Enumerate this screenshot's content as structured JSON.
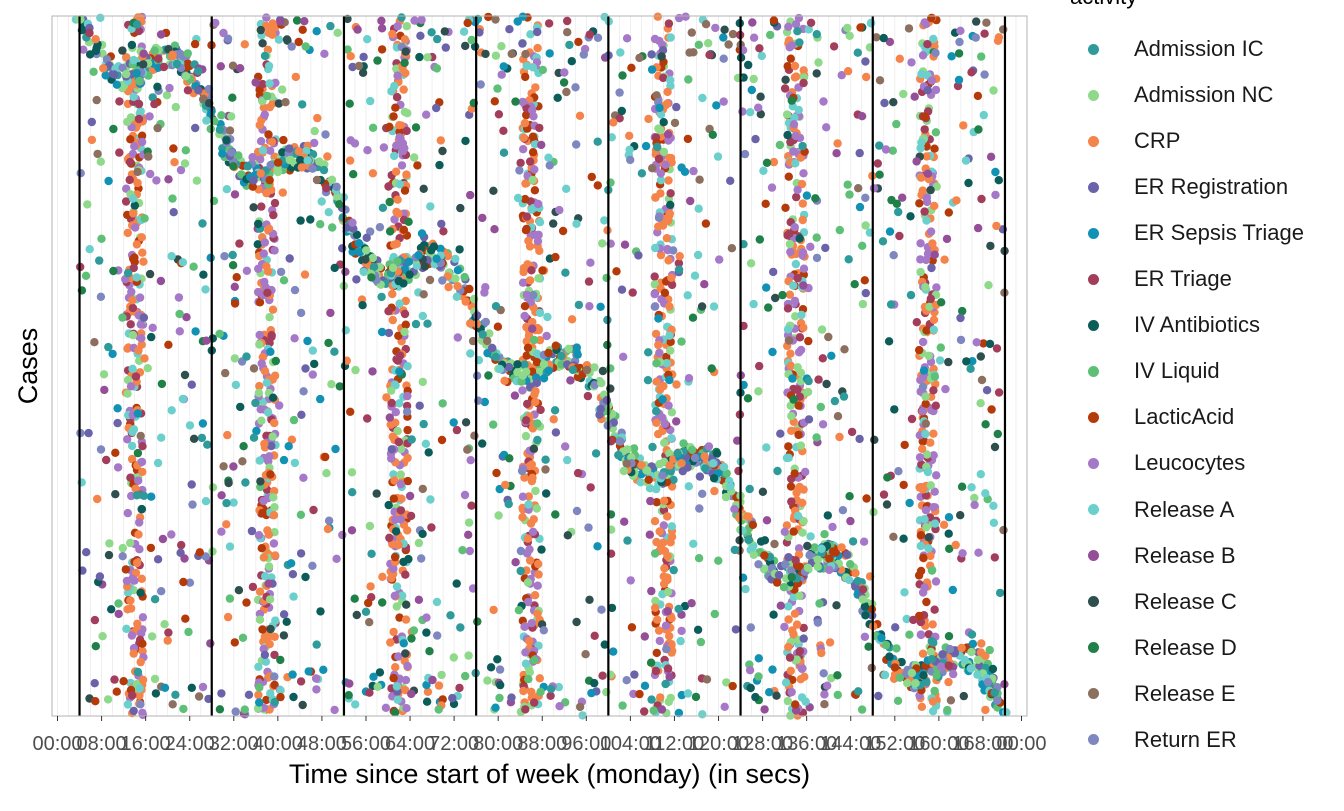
{
  "chart_data": {
    "type": "scatter",
    "title": "",
    "xlabel": "Time since start of week (monday) (in secs)",
    "ylabel": "Cases",
    "x_ticks": [
      "00:00",
      "08:00",
      "16:00",
      "24:00",
      "32:00",
      "40:00",
      "48:00",
      "56:00",
      "64:00",
      "72:00",
      "80:00",
      "88:00",
      "96:00",
      "104:00",
      "112:00",
      "120:00",
      "128:00",
      "136:00",
      "144:00",
      "152:00",
      "160:00",
      "168:00",
      "00:00"
    ],
    "xlim_hours": [
      -5,
      172
    ],
    "day_boundaries_hours": [
      0,
      24,
      48,
      72,
      96,
      120,
      144,
      168
    ],
    "grid": true,
    "legend_title": "activity",
    "legend_position": "right",
    "series": [
      {
        "name": "Admission IC",
        "color": "#2E9A9A"
      },
      {
        "name": "Admission NC",
        "color": "#8FD98A"
      },
      {
        "name": "CRP",
        "color": "#F4844A"
      },
      {
        "name": "ER Registration",
        "color": "#6A63AA"
      },
      {
        "name": "ER Sepsis Triage",
        "color": "#1192B4"
      },
      {
        "name": "ER Triage",
        "color": "#A23D5C"
      },
      {
        "name": "IV Antibiotics",
        "color": "#0C5C5A"
      },
      {
        "name": "IV Liquid",
        "color": "#5EBF77"
      },
      {
        "name": "LacticAcid",
        "color": "#B53A0A"
      },
      {
        "name": "Leucocytes",
        "color": "#A678C8"
      },
      {
        "name": "Release A",
        "color": "#6BD0CC"
      },
      {
        "name": "Release B",
        "color": "#944F98"
      },
      {
        "name": "Release C",
        "color": "#2F4F4F"
      },
      {
        "name": "Release D",
        "color": "#1F8048"
      },
      {
        "name": "Release E",
        "color": "#8C6F5E"
      },
      {
        "name": "Return ER",
        "color": "#7E87BF"
      }
    ]
  }
}
